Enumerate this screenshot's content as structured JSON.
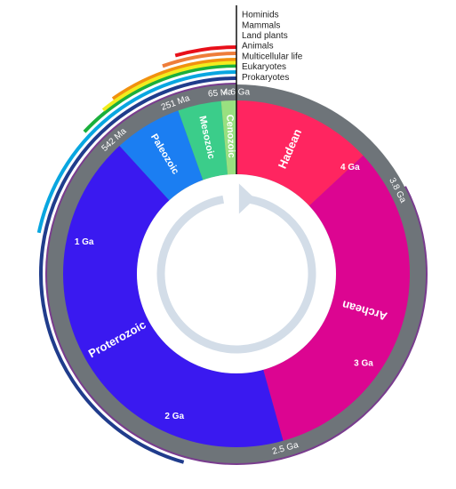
{
  "total_ga": 4.6,
  "eons": [
    {
      "name": "Hadean",
      "start_ga": 4.6,
      "end_ga": 4.0,
      "color": "#ff2560"
    },
    {
      "name": "Archean",
      "start_ga": 4.0,
      "end_ga": 2.5,
      "color": "#dc0591"
    },
    {
      "name": "Proterozoic",
      "start_ga": 2.5,
      "end_ga": 0.542,
      "color": "#3a19f0"
    },
    {
      "name": "Paleozoic",
      "start_ga": 0.542,
      "end_ga": 0.251,
      "color": "#1b7ef2"
    },
    {
      "name": "Mesozoic",
      "start_ga": 0.251,
      "end_ga": 0.065,
      "color": "#3bcd8a"
    },
    {
      "name": "Cenozoic",
      "start_ga": 0.065,
      "end_ga": 0.0,
      "color": "#99e080"
    }
  ],
  "time_labels": [
    {
      "text": "4.6 Ga",
      "at_ga": 4.6
    },
    {
      "text": "3.8 Ga",
      "at_ga": 3.8
    },
    {
      "text": "2.5 Ga",
      "at_ga": 2.5
    },
    {
      "text": "542 Ma",
      "at_ga": 0.542
    },
    {
      "text": "251 Ma",
      "at_ga": 0.251
    },
    {
      "text": "65 Ma",
      "at_ga": 0.065
    }
  ],
  "inner_labels": [
    {
      "text": "4 Ga",
      "at_ga": 4.0
    },
    {
      "text": "3 Ga",
      "at_ga": 3.0
    },
    {
      "text": "2 Ga",
      "at_ga": 2.0
    },
    {
      "text": "1 Ga",
      "at_ga": 1.0
    }
  ],
  "life_arcs": [
    {
      "name": "Hominids",
      "start_ga": 0.2,
      "color": "#e8101a"
    },
    {
      "name": "Mammals",
      "start_ga": 0.25,
      "color": "#ee7d3a"
    },
    {
      "name": "Land plants",
      "start_ga": 0.45,
      "color": "#f1910f"
    },
    {
      "name": "Animals",
      "start_ga": 0.6,
      "color": "#1aaf3c"
    },
    {
      "name": "Multicellular life",
      "start_ga": 1.0,
      "color": "#08a6e0"
    },
    {
      "name": "Eukaryotes",
      "start_ga": 2.1,
      "color": "#203c8c"
    },
    {
      "name": "Prokaryotes",
      "start_ga": 3.8,
      "color": "#793c8e"
    }
  ],
  "ring_color": "#6e7479",
  "arrow_color": "#d3dde8",
  "yellow_arc_color": "#f2ec1e"
}
